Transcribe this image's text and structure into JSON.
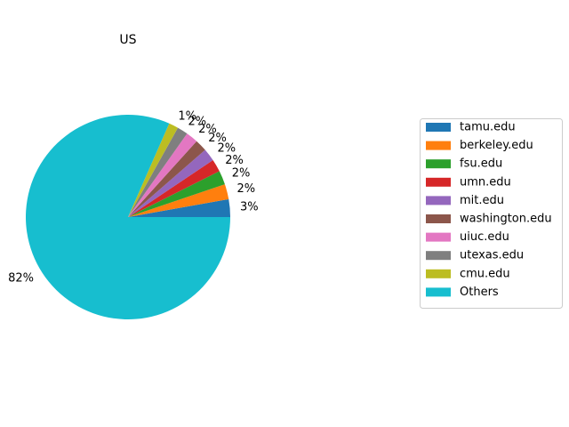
{
  "chart_data": {
    "type": "pie",
    "title": "US",
    "labels": [
      "tamu.edu",
      "berkeley.edu",
      "fsu.edu",
      "umn.edu",
      "mit.edu",
      "washington.edu",
      "uiuc.edu",
      "utexas.edu",
      "cmu.edu",
      "Others"
    ],
    "values": [
      2.8,
      2.4,
      2.2,
      2.0,
      2.0,
      1.9,
      1.9,
      1.7,
      1.5,
      81.6
    ],
    "pct_labels": [
      "3%",
      "2%",
      "2%",
      "2%",
      "2%",
      "2%",
      "2%",
      "2%",
      "1%",
      "82%"
    ],
    "colors": [
      "#1f77b4",
      "#ff7f0e",
      "#2ca02c",
      "#d62728",
      "#9467bd",
      "#8c564b",
      "#e377c2",
      "#7f7f7f",
      "#bcbd22",
      "#17becf"
    ],
    "start_angle_deg": 0,
    "direction": "counterclockwise",
    "legend_position": "right"
  }
}
